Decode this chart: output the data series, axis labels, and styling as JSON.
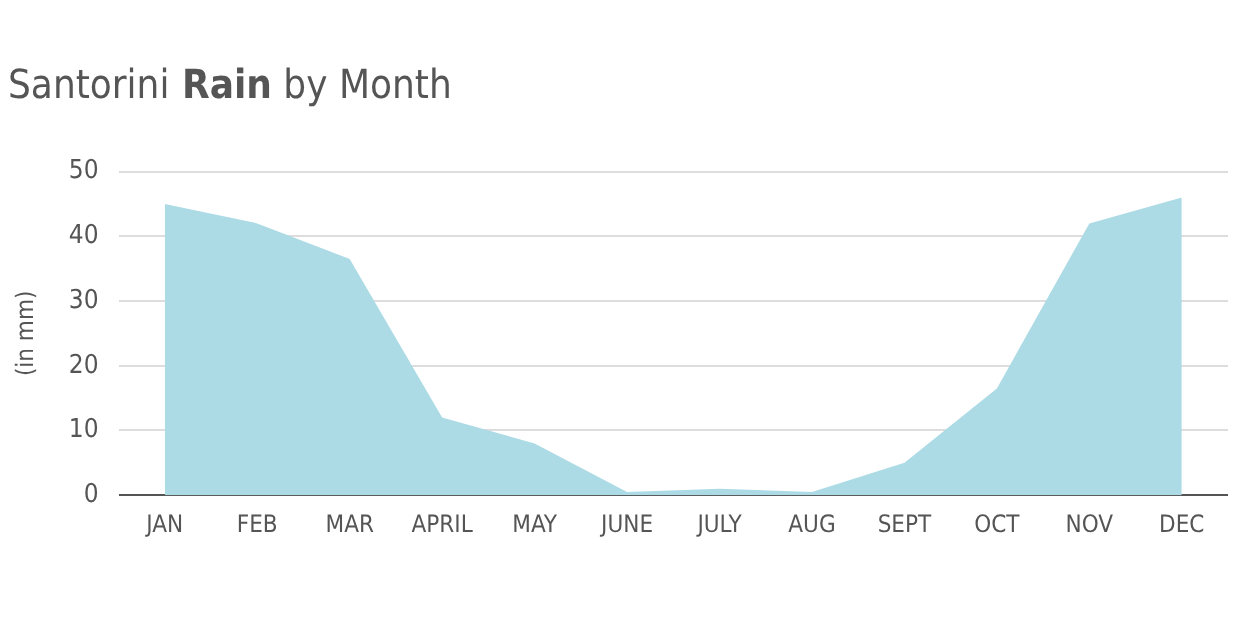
{
  "chart_data": {
    "type": "area",
    "title": "Santorini Rain by Month",
    "ylabel": "(in mm)",
    "categories": [
      "JAN",
      "FEB",
      "MAR",
      "APRIL",
      "MAY",
      "JUNE",
      "JULY",
      "AUG",
      "SEPT",
      "OCT",
      "NOV",
      "DEC"
    ],
    "values": [
      45,
      42,
      36.5,
      12,
      8,
      0.5,
      1,
      0.5,
      5,
      16.5,
      42,
      46
    ],
    "color": "#acdbe6",
    "ylim": [
      0,
      50
    ],
    "yticks": [
      0,
      10,
      20,
      30,
      40,
      50
    ],
    "grid": "y"
  }
}
